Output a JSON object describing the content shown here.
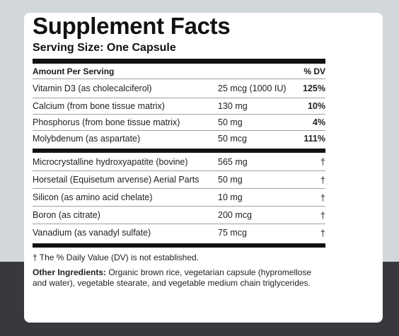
{
  "title": "Supplement Facts",
  "serving_size": "Serving Size: One Capsule",
  "header": {
    "amount_label": "Amount Per Serving",
    "dv_label": "% DV"
  },
  "nutrients": [
    {
      "name": "Vitamin D3 (as cholecalciferol)",
      "amount": "25 mcg (1000 IU)",
      "dv": "125%"
    },
    {
      "name": "Calcium (from bone tissue matrix)",
      "amount": "130 mg",
      "dv": "10%"
    },
    {
      "name": "Phosphorus (from bone tissue matrix)",
      "amount": "50 mg",
      "dv": "4%"
    },
    {
      "name": "Molybdenum (as aspartate)",
      "amount": "50 mcg",
      "dv": "111%"
    }
  ],
  "other_nutrients": [
    {
      "name": "Microcrystalline hydroxyapatite (bovine)",
      "amount": "565 mg",
      "dv": "†"
    },
    {
      "name": "Horsetail (Equisetum arvense) Aerial Parts",
      "amount": "50 mg",
      "dv": "†"
    },
    {
      "name": "Silicon (as amino acid chelate)",
      "amount": "10 mg",
      "dv": "†"
    },
    {
      "name": "Boron (as citrate)",
      "amount": "200 mcg",
      "dv": "†"
    },
    {
      "name": "Vanadium (as vanadyl sulfate)",
      "amount": "75 mcg",
      "dv": "†"
    }
  ],
  "footnote": "† The % Daily Value (DV) is not established.",
  "other_ingredients": {
    "label": "Other Ingredients:",
    "text": " Organic brown rice, vegetarian capsule (hypromellose and water), vegetable stearate, and vegetable medium chain triglycerides."
  },
  "colors": {
    "background_top": "#d2d8d9",
    "background_bottom": "#39393d",
    "card": "#ffffff",
    "ink": "#111111"
  }
}
